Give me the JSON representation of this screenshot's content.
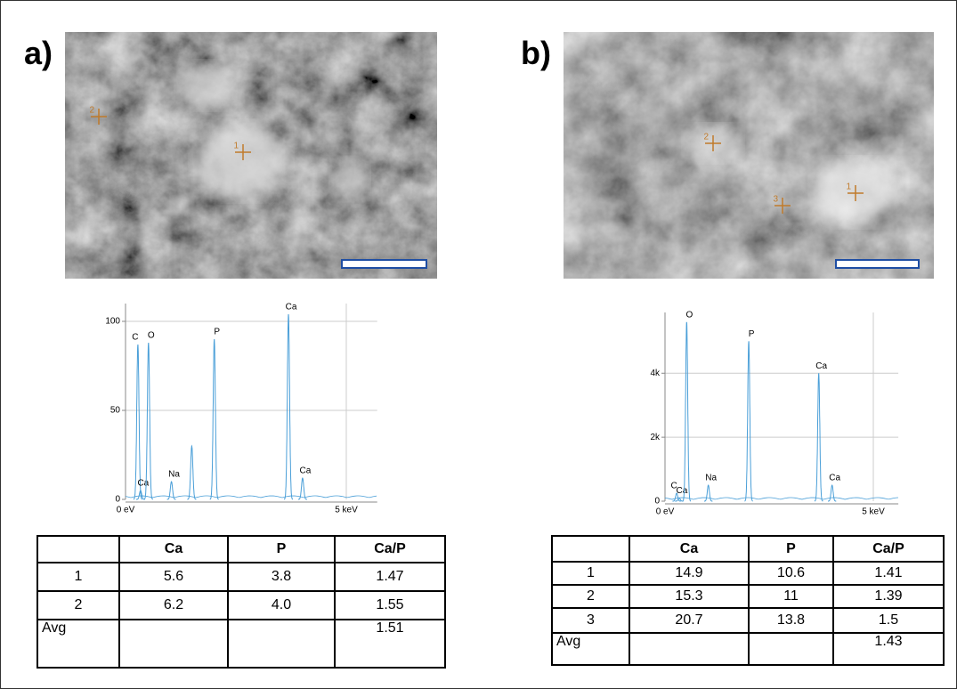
{
  "panels": [
    {
      "label": "a)",
      "markers": [
        "1",
        "2"
      ],
      "table": {
        "header": [
          "Ca",
          "P",
          "Ca/P"
        ],
        "rows": [
          [
            "1",
            "5.6",
            "3.8",
            "1.47"
          ],
          [
            "2",
            "6.2",
            "4.0",
            "1.55"
          ],
          [
            "Avg",
            null,
            null,
            "1.51"
          ]
        ]
      }
    },
    {
      "label": "b)",
      "markers": [
        "1",
        "2",
        "3"
      ],
      "table": {
        "header": [
          "Ca",
          "P",
          "Ca/P"
        ],
        "rows": [
          [
            "1",
            "14.9",
            "10.6",
            "1.41"
          ],
          [
            "2",
            "15.3",
            "11",
            "1.39"
          ],
          [
            "3",
            "20.7",
            "13.8",
            "1.5"
          ],
          [
            "Avg",
            null,
            null,
            "1.43"
          ]
        ]
      }
    }
  ],
  "chart_data": [
    {
      "type": "line",
      "color": "#4a9fd8",
      "grid": true,
      "x": [
        0.28,
        0.34,
        0.52,
        1.04,
        1.5,
        2.01,
        3.69,
        4.01
      ],
      "values": [
        87,
        5,
        88,
        10,
        30,
        90,
        104,
        12
      ],
      "peak_labels": [
        "C",
        "Ca",
        "O",
        "Na",
        null,
        "P",
        "Ca",
        "Ca"
      ],
      "xlim": [
        0,
        5.7
      ],
      "xticks": [
        {
          "value": 0,
          "label": "0 eV"
        },
        {
          "value": 5,
          "label": "5 keV"
        }
      ],
      "ylim": [
        0,
        110
      ],
      "yticks": [
        0,
        50,
        100
      ]
    },
    {
      "type": "line",
      "color": "#4a9fd8",
      "grid": true,
      "x": [
        0.28,
        0.34,
        0.52,
        1.04,
        2.01,
        3.69,
        4.01
      ],
      "values": [
        250,
        100,
        5600,
        500,
        5000,
        4000,
        500
      ],
      "peak_labels": [
        "C",
        "Ca",
        "O",
        "Na",
        "P",
        "Ca",
        "Ca"
      ],
      "xlim": [
        0,
        5.6
      ],
      "xticks": [
        {
          "value": 0,
          "label": "0 eV"
        },
        {
          "value": 5,
          "label": "5 keV"
        }
      ],
      "ylim": [
        0,
        5900
      ],
      "yticks": [
        0,
        {
          "value": 2000,
          "label": "2k"
        },
        {
          "value": 4000,
          "label": "4k"
        }
      ]
    }
  ]
}
